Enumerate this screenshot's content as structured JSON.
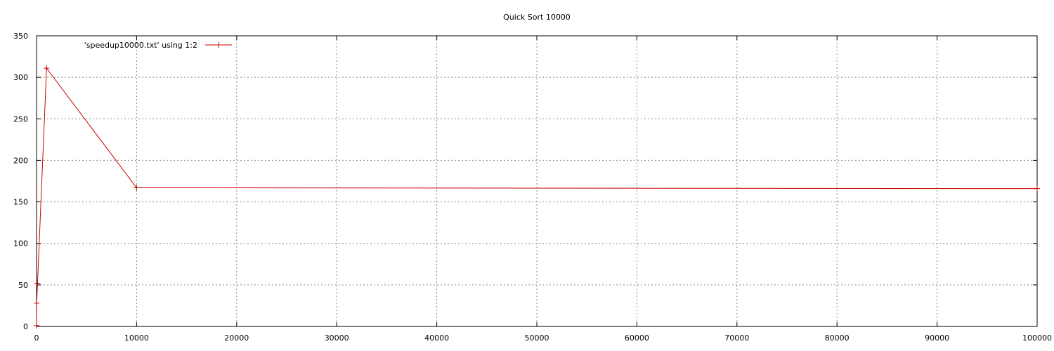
{
  "chart_data": {
    "type": "line",
    "title": "Quick Sort 10000",
    "xlabel": "",
    "ylabel": "",
    "xlim": [
      0,
      100000
    ],
    "ylim": [
      0,
      350
    ],
    "x_ticks": [
      0,
      10000,
      20000,
      30000,
      40000,
      50000,
      60000,
      70000,
      80000,
      90000,
      100000
    ],
    "y_ticks": [
      0,
      50,
      100,
      150,
      200,
      250,
      300,
      350
    ],
    "grid": true,
    "legend_position": "top-left",
    "series": [
      {
        "name": "'speedup10000.txt' using 1:2",
        "color": "#cc0000",
        "marker": "plus",
        "x": [
          1,
          10,
          100,
          1000,
          10000,
          100000
        ],
        "y": [
          1,
          28,
          52,
          311,
          167,
          166
        ]
      }
    ]
  }
}
